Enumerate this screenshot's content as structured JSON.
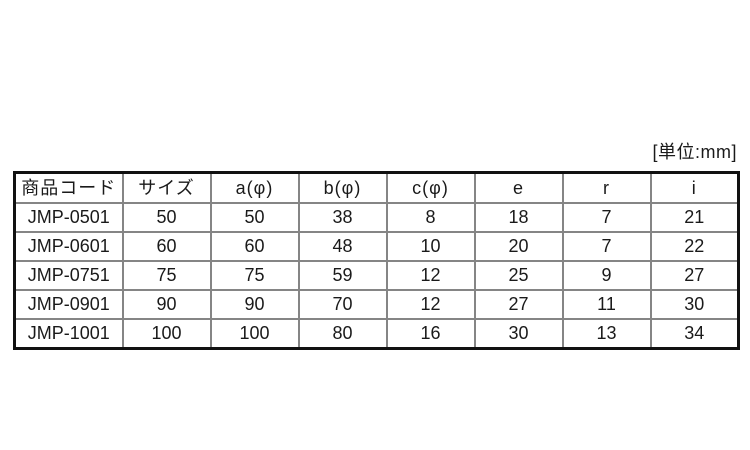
{
  "unit_label": "[単位:mm]",
  "table": {
    "headers": [
      "商品コード",
      "サイズ",
      "a(φ)",
      "b(φ)",
      "c(φ)",
      "e",
      "r",
      "i"
    ],
    "rows": [
      [
        "JMP-0501",
        "50",
        "50",
        "38",
        "8",
        "18",
        "7",
        "21"
      ],
      [
        "JMP-0601",
        "60",
        "60",
        "48",
        "10",
        "20",
        "7",
        "22"
      ],
      [
        "JMP-0751",
        "75",
        "75",
        "59",
        "12",
        "25",
        "9",
        "27"
      ],
      [
        "JMP-0901",
        "90",
        "90",
        "70",
        "12",
        "27",
        "11",
        "30"
      ],
      [
        "JMP-1001",
        "100",
        "100",
        "80",
        "16",
        "30",
        "13",
        "34"
      ]
    ]
  },
  "colors": {
    "background": "#ffffff",
    "text": "#1a1a1a",
    "outer_border": "#111111",
    "inner_border": "#858585"
  }
}
